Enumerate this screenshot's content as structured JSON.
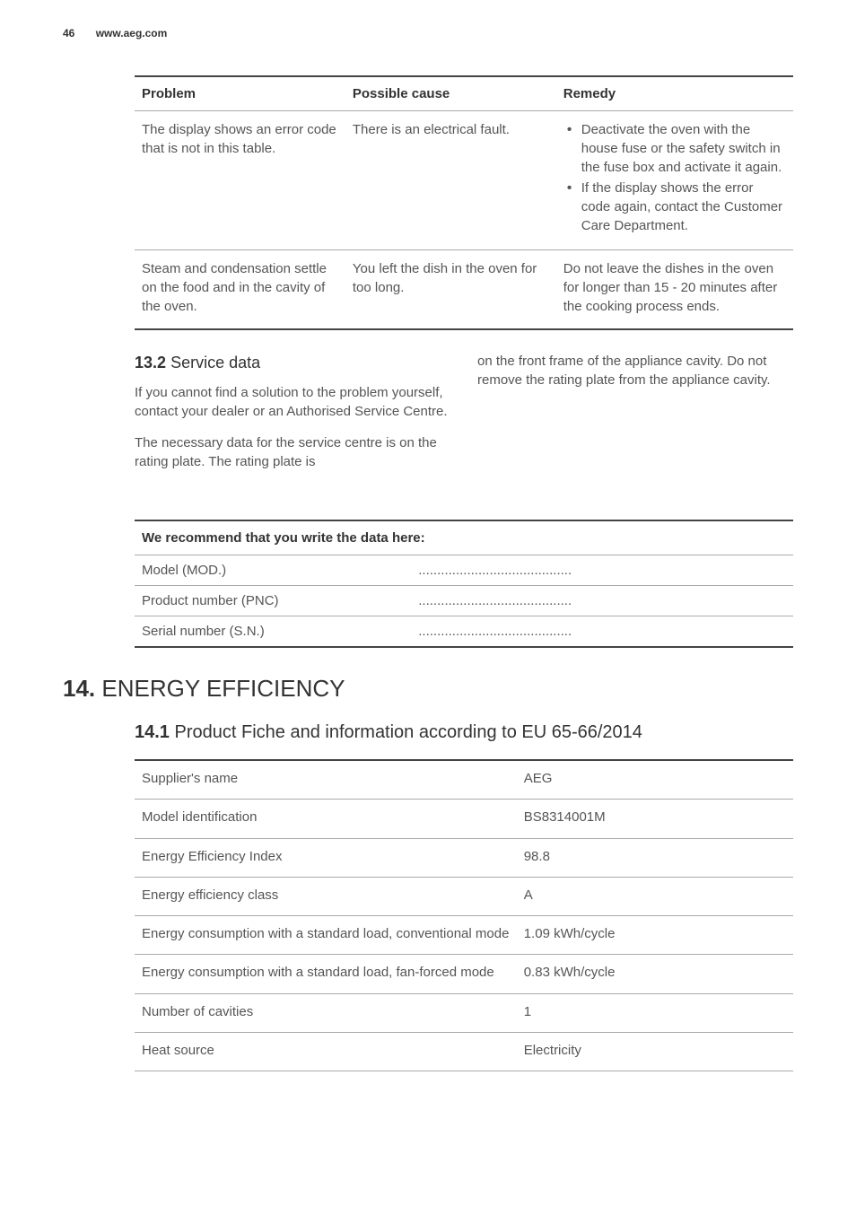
{
  "header": {
    "page_number": "46",
    "site": "www.aeg.com"
  },
  "troubleshoot": {
    "columns": {
      "problem": "Problem",
      "cause": "Possible cause",
      "remedy": "Remedy"
    },
    "rows": [
      {
        "problem": "The display shows an error code that is not in this table.",
        "cause": "There is an electrical fault.",
        "remedy_bullets": [
          "Deactivate the oven with the house fuse or the safety switch in the fuse box and activate it again.",
          "If the display shows the error code again, contact the Customer Care Department."
        ]
      },
      {
        "problem": "Steam and condensation settle on the food and in the cavity of the oven.",
        "cause": "You left the dish in the oven for too long.",
        "remedy_text": "Do not leave the dishes in the oven for longer than 15 - 20 minutes after the cooking process ends."
      }
    ]
  },
  "service": {
    "heading_num": "13.2",
    "heading_text": "Service data",
    "para_left_1": "If you cannot find a solution to the problem yourself, contact your dealer or an Authorised Service Centre.",
    "para_left_2": "The necessary data for the service centre is on the rating plate. The rating plate is",
    "para_right": "on the front frame of the appliance cavity. Do not remove the rating plate from the appliance cavity.",
    "table_header": "We recommend that you write the data here:",
    "rows": [
      {
        "label": "Model (MOD.)",
        "value": "........................................."
      },
      {
        "label": "Product number (PNC)",
        "value": "........................................."
      },
      {
        "label": "Serial number (S.N.)",
        "value": "........................................."
      }
    ]
  },
  "energy": {
    "chapter_num": "14.",
    "chapter_text": "ENERGY EFFICIENCY",
    "sub_num": "14.1",
    "sub_text": "Product Fiche and information according to EU 65-66/2014",
    "rows": [
      {
        "label": "Supplier's name",
        "value": "AEG"
      },
      {
        "label": "Model identification",
        "value": "BS8314001M"
      },
      {
        "label": "Energy Efficiency Index",
        "value": "98.8"
      },
      {
        "label": "Energy efficiency class",
        "value": "A"
      },
      {
        "label": "Energy consumption with a standard load, conventional mode",
        "value": "1.09 kWh/cycle"
      },
      {
        "label": "Energy consumption with a standard load, fan-forced mode",
        "value": "0.83 kWh/cycle"
      },
      {
        "label": "Number of cavities",
        "value": "1"
      },
      {
        "label": "Heat source",
        "value": "Electricity"
      }
    ]
  }
}
